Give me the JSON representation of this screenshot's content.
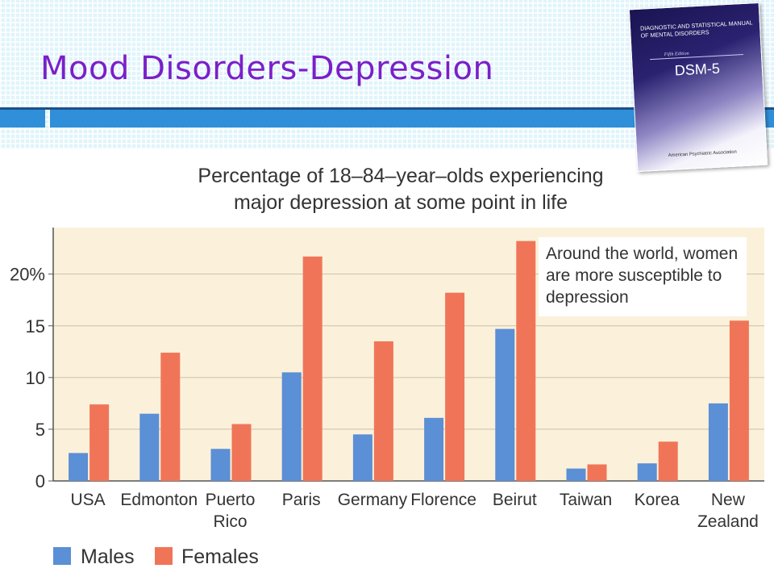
{
  "slide": {
    "title": "Mood Disorders-Depression"
  },
  "book": {
    "title": "Diagnostic and Statistical Manual of Mental Disorders",
    "edition": "Fifth Edition",
    "name": "DSM-5",
    "publisher": "American Psychiatric Association"
  },
  "colors": {
    "title": "#7b1fc9",
    "males": "#5b8fd6",
    "females": "#f07558",
    "plot_bg": "#fbf1da",
    "accent_bar": "#2f8fd8"
  },
  "chart_data": {
    "type": "bar",
    "title": "Percentage of 18–84–year–olds experiencing major depression at some point in life",
    "title_lines": [
      "Percentage of 18–84–year–olds experiencing",
      "major depression at some point in life"
    ],
    "categories": [
      "USA",
      "Edmonton",
      "Puerto Rico",
      "Paris",
      "Germany",
      "Florence",
      "Beirut",
      "Taiwan",
      "Korea",
      "New Zealand"
    ],
    "category_lines": [
      [
        "USA"
      ],
      [
        "Edmonton"
      ],
      [
        "Puerto",
        "Rico"
      ],
      [
        "Paris"
      ],
      [
        "Germany"
      ],
      [
        "Florence"
      ],
      [
        "Beirut"
      ],
      [
        "Taiwan"
      ],
      [
        "Korea"
      ],
      [
        "New",
        "Zealand"
      ]
    ],
    "series": [
      {
        "name": "Males",
        "values": [
          2.7,
          6.5,
          3.1,
          10.5,
          4.5,
          6.1,
          14.7,
          1.2,
          1.7,
          7.5
        ]
      },
      {
        "name": "Females",
        "values": [
          7.4,
          12.4,
          5.5,
          21.7,
          13.5,
          18.2,
          23.2,
          1.6,
          3.8,
          15.5
        ]
      }
    ],
    "ylim": [
      0,
      24.5
    ],
    "yticks": [
      0,
      5,
      10,
      15,
      20
    ],
    "ytick_labels": [
      "0",
      "5",
      "10",
      "15",
      "20%"
    ],
    "grid": true,
    "legend": "bottom-left",
    "annotation": "Around the world, women are more susceptible to depression",
    "annotation_lines": [
      "Around the world, women",
      "are more susceptible to",
      "depression"
    ]
  }
}
